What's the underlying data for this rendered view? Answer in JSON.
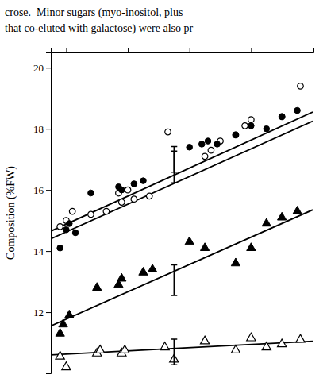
{
  "chart_data": {
    "type": "scatter",
    "annotations": [
      "crose.  Minor sugars (myo-inositol, plus",
      "that co-eluted with galactose) were also pr"
    ],
    "ylabel": "Composition (%FW)",
    "xlim": [
      1.025,
      1.11
    ],
    "ylim": [
      10.0,
      20.5
    ],
    "xticks": [
      1.03,
      1.05,
      1.07,
      1.09
    ],
    "yticks": [
      12,
      14,
      16,
      18,
      20
    ],
    "tick_labels": "y",
    "grid": false,
    "series": [
      {
        "marker": "circle-open",
        "color": "#000000",
        "x": [
          1.028,
          1.03,
          1.032,
          1.038,
          1.043,
          1.047,
          1.048,
          1.05,
          1.052,
          1.057,
          1.063,
          1.075,
          1.077,
          1.08,
          1.085,
          1.088,
          1.09,
          1.1,
          1.106
        ],
        "values": [
          14.8,
          15.0,
          15.3,
          15.2,
          15.3,
          15.9,
          15.6,
          16.0,
          15.7,
          15.8,
          17.9,
          17.1,
          17.3,
          17.6,
          17.8,
          18.1,
          18.3,
          18.4,
          19.4
        ],
        "fit": {
          "x": [
            1.025,
            1.11
          ],
          "values": [
            14.65,
            18.55
          ]
        },
        "error_bar": {
          "x": 1.065,
          "value": 16.75,
          "error": 0.52
        }
      },
      {
        "marker": "circle",
        "color": "#000000",
        "x": [
          1.028,
          1.03,
          1.031,
          1.033,
          1.038,
          1.047,
          1.048,
          1.052,
          1.055,
          1.07,
          1.074,
          1.076,
          1.079,
          1.085,
          1.09,
          1.095,
          1.1,
          1.105
        ],
        "values": [
          14.1,
          14.7,
          14.9,
          14.6,
          15.9,
          16.1,
          16.0,
          16.2,
          16.3,
          17.4,
          17.5,
          17.6,
          17.5,
          17.8,
          18.1,
          18.0,
          18.4,
          18.6
        ],
        "fit": {
          "x": [
            1.025,
            1.11
          ],
          "values": [
            14.4,
            18.25
          ]
        },
        "error_bar": {
          "x": 1.065,
          "value": 17.0,
          "error": 0.42
        }
      },
      {
        "marker": "triangle",
        "color": "#000000",
        "x": [
          1.028,
          1.029,
          1.031,
          1.04,
          1.047,
          1.048,
          1.055,
          1.058,
          1.07,
          1.075,
          1.085,
          1.09,
          1.095,
          1.1,
          1.105
        ],
        "values": [
          11.3,
          11.6,
          11.9,
          12.8,
          12.9,
          13.1,
          13.3,
          13.4,
          14.3,
          14.1,
          13.6,
          14.1,
          14.9,
          15.1,
          15.3
        ],
        "fit": {
          "x": [
            1.025,
            1.11
          ],
          "values": [
            11.55,
            15.35
          ]
        },
        "error_bar": {
          "x": 1.065,
          "value": 13.05,
          "error": 0.5
        }
      },
      {
        "marker": "triangle-open",
        "color": "#000000",
        "x": [
          1.028,
          1.03,
          1.04,
          1.041,
          1.048,
          1.049,
          1.062,
          1.065,
          1.075,
          1.085,
          1.09,
          1.095,
          1.1,
          1.106
        ],
        "values": [
          10.55,
          10.2,
          10.65,
          10.75,
          10.65,
          10.75,
          10.85,
          10.45,
          11.05,
          10.75,
          11.15,
          10.85,
          10.95,
          11.1
        ],
        "fit": {
          "x": [
            1.025,
            1.11
          ],
          "values": [
            10.6,
            11.05
          ]
        },
        "error_bar": {
          "x": 1.065,
          "value": 10.7,
          "error": 0.42
        }
      }
    ]
  }
}
